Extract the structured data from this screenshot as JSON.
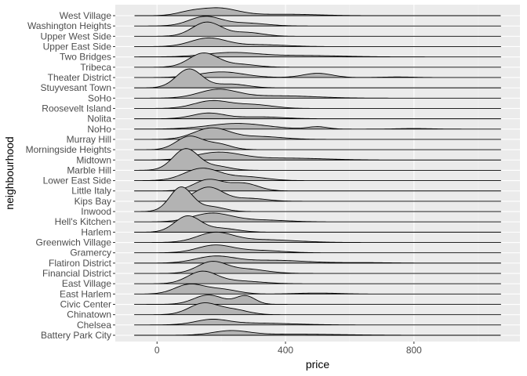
{
  "chart_data": {
    "type": "ridgeline",
    "xlabel": "price",
    "ylabel": "neighbourhood",
    "xlim": [
      -130,
      1130
    ],
    "x_ticks": [
      0,
      400,
      800
    ],
    "x_tick_labels": [
      "0",
      "400",
      "800"
    ],
    "density_range": [
      -70,
      1070
    ],
    "grid": true,
    "colors": {
      "panel": "#ebebeb",
      "grid_major": "#ffffff",
      "grid_minor": "#f2f2f2",
      "ridge_fill": "#b3b3b3",
      "ridge_line": "#000000"
    },
    "series": [
      {
        "name": "Battery Park City",
        "peaks": [
          {
            "m": 230,
            "s": 55,
            "h": 0.45
          },
          {
            "m": 420,
            "s": 150,
            "h": 0.12
          }
        ]
      },
      {
        "name": "Chelsea",
        "peaks": [
          {
            "m": 170,
            "s": 50,
            "h": 0.5
          },
          {
            "m": 300,
            "s": 120,
            "h": 0.2
          }
        ]
      },
      {
        "name": "Chinatown",
        "peaks": [
          {
            "m": 145,
            "s": 45,
            "h": 1.2
          },
          {
            "m": 240,
            "s": 45,
            "h": 0.5
          }
        ]
      },
      {
        "name": "Civic Center",
        "peaks": [
          {
            "m": 160,
            "s": 45,
            "h": 1.0
          },
          {
            "m": 275,
            "s": 30,
            "h": 0.9
          }
        ]
      },
      {
        "name": "East Harlem",
        "peaks": [
          {
            "m": 100,
            "s": 45,
            "h": 1.0
          },
          {
            "m": 200,
            "s": 50,
            "h": 0.5
          },
          {
            "m": 500,
            "s": 70,
            "h": 0.1
          }
        ]
      },
      {
        "name": "East Village",
        "peaks": [
          {
            "m": 140,
            "s": 45,
            "h": 1.25
          },
          {
            "m": 250,
            "s": 70,
            "h": 0.3
          }
        ]
      },
      {
        "name": "Financial District",
        "peaks": [
          {
            "m": 170,
            "s": 45,
            "h": 1.2
          },
          {
            "m": 280,
            "s": 60,
            "h": 0.45
          }
        ]
      },
      {
        "name": "Flatiron District",
        "peaks": [
          {
            "m": 180,
            "s": 60,
            "h": 0.7
          },
          {
            "m": 360,
            "s": 100,
            "h": 0.3
          },
          {
            "m": 650,
            "s": 80,
            "h": 0.05
          }
        ]
      },
      {
        "name": "Gramercy",
        "peaks": [
          {
            "m": 180,
            "s": 55,
            "h": 0.8
          },
          {
            "m": 320,
            "s": 70,
            "h": 0.25
          }
        ]
      },
      {
        "name": "Greenwich Village",
        "peaks": [
          {
            "m": 180,
            "s": 55,
            "h": 1.0
          },
          {
            "m": 330,
            "s": 100,
            "h": 0.3
          }
        ]
      },
      {
        "name": "Harlem",
        "peaks": [
          {
            "m": 95,
            "s": 40,
            "h": 1.7
          },
          {
            "m": 200,
            "s": 50,
            "h": 0.4
          }
        ]
      },
      {
        "name": "Hell's Kitchen",
        "peaks": [
          {
            "m": 170,
            "s": 60,
            "h": 0.9
          },
          {
            "m": 320,
            "s": 80,
            "h": 0.2
          }
        ]
      },
      {
        "name": "Inwood",
        "peaks": [
          {
            "m": 75,
            "s": 35,
            "h": 2.6
          },
          {
            "m": 170,
            "s": 40,
            "h": 0.5
          }
        ]
      },
      {
        "name": "Kips Bay",
        "peaks": [
          {
            "m": 160,
            "s": 45,
            "h": 1.5
          },
          {
            "m": 290,
            "s": 50,
            "h": 0.3
          }
        ]
      },
      {
        "name": "Little Italy",
        "peaks": [
          {
            "m": 160,
            "s": 45,
            "h": 1.2
          },
          {
            "m": 270,
            "s": 45,
            "h": 0.8
          }
        ]
      },
      {
        "name": "Lower East Side",
        "peaks": [
          {
            "m": 140,
            "s": 55,
            "h": 1.3
          },
          {
            "m": 280,
            "s": 60,
            "h": 0.4
          }
        ]
      },
      {
        "name": "Marble Hill",
        "peaks": [
          {
            "m": 90,
            "s": 40,
            "h": 2.3
          },
          {
            "m": 190,
            "s": 40,
            "h": 0.4
          }
        ]
      },
      {
        "name": "Midtown",
        "peaks": [
          {
            "m": 190,
            "s": 70,
            "h": 0.8
          },
          {
            "m": 400,
            "s": 120,
            "h": 0.2
          }
        ]
      },
      {
        "name": "Morningside Heights",
        "peaks": [
          {
            "m": 100,
            "s": 40,
            "h": 1.4
          },
          {
            "m": 190,
            "s": 40,
            "h": 0.6
          }
        ]
      },
      {
        "name": "Murray Hill",
        "peaks": [
          {
            "m": 170,
            "s": 55,
            "h": 1.2
          },
          {
            "m": 320,
            "s": 70,
            "h": 0.3
          }
        ]
      },
      {
        "name": "NoHo",
        "peaks": [
          {
            "m": 250,
            "s": 90,
            "h": 0.6
          },
          {
            "m": 500,
            "s": 30,
            "h": 0.25
          },
          {
            "m": 800,
            "s": 50,
            "h": 0.06
          }
        ]
      },
      {
        "name": "Nolita",
        "peaks": [
          {
            "m": 160,
            "s": 50,
            "h": 0.6
          },
          {
            "m": 320,
            "s": 70,
            "h": 0.2
          }
        ]
      },
      {
        "name": "Roosevelt Island",
        "peaks": [
          {
            "m": 170,
            "s": 55,
            "h": 0.8
          },
          {
            "m": 300,
            "s": 60,
            "h": 0.4
          }
        ]
      },
      {
        "name": "SoHo",
        "peaks": [
          {
            "m": 190,
            "s": 60,
            "h": 0.9
          },
          {
            "m": 380,
            "s": 110,
            "h": 0.25
          }
        ]
      },
      {
        "name": "Stuyvesant Town",
        "peaks": [
          {
            "m": 100,
            "s": 40,
            "h": 2.0
          },
          {
            "m": 230,
            "s": 50,
            "h": 0.4
          }
        ]
      },
      {
        "name": "Theater District",
        "peaks": [
          {
            "m": 200,
            "s": 70,
            "h": 0.6
          },
          {
            "m": 500,
            "s": 45,
            "h": 0.45
          },
          {
            "m": 750,
            "s": 50,
            "h": 0.06
          }
        ]
      },
      {
        "name": "Tribeca",
        "peaks": [
          {
            "m": 145,
            "s": 45,
            "h": 1.5
          },
          {
            "m": 260,
            "s": 50,
            "h": 0.3
          }
        ]
      },
      {
        "name": "Two Bridges",
        "peaks": [
          {
            "m": 230,
            "s": 80,
            "h": 0.45
          },
          {
            "m": 450,
            "s": 120,
            "h": 0.15
          }
        ]
      },
      {
        "name": "Upper East Side",
        "peaks": [
          {
            "m": 160,
            "s": 55,
            "h": 0.9
          },
          {
            "m": 320,
            "s": 80,
            "h": 0.2
          }
        ]
      },
      {
        "name": "Upper West Side",
        "peaks": [
          {
            "m": 155,
            "s": 45,
            "h": 1.5
          },
          {
            "m": 280,
            "s": 50,
            "h": 0.4
          }
        ]
      },
      {
        "name": "Washington Heights",
        "peaks": [
          {
            "m": 150,
            "s": 50,
            "h": 1.0
          },
          {
            "m": 280,
            "s": 60,
            "h": 0.3
          }
        ]
      },
      {
        "name": "West Village",
        "peaks": [
          {
            "m": 100,
            "s": 40,
            "h": 0.3
          },
          {
            "m": 190,
            "s": 60,
            "h": 0.8
          },
          {
            "m": 400,
            "s": 100,
            "h": 0.15
          }
        ]
      }
    ]
  }
}
